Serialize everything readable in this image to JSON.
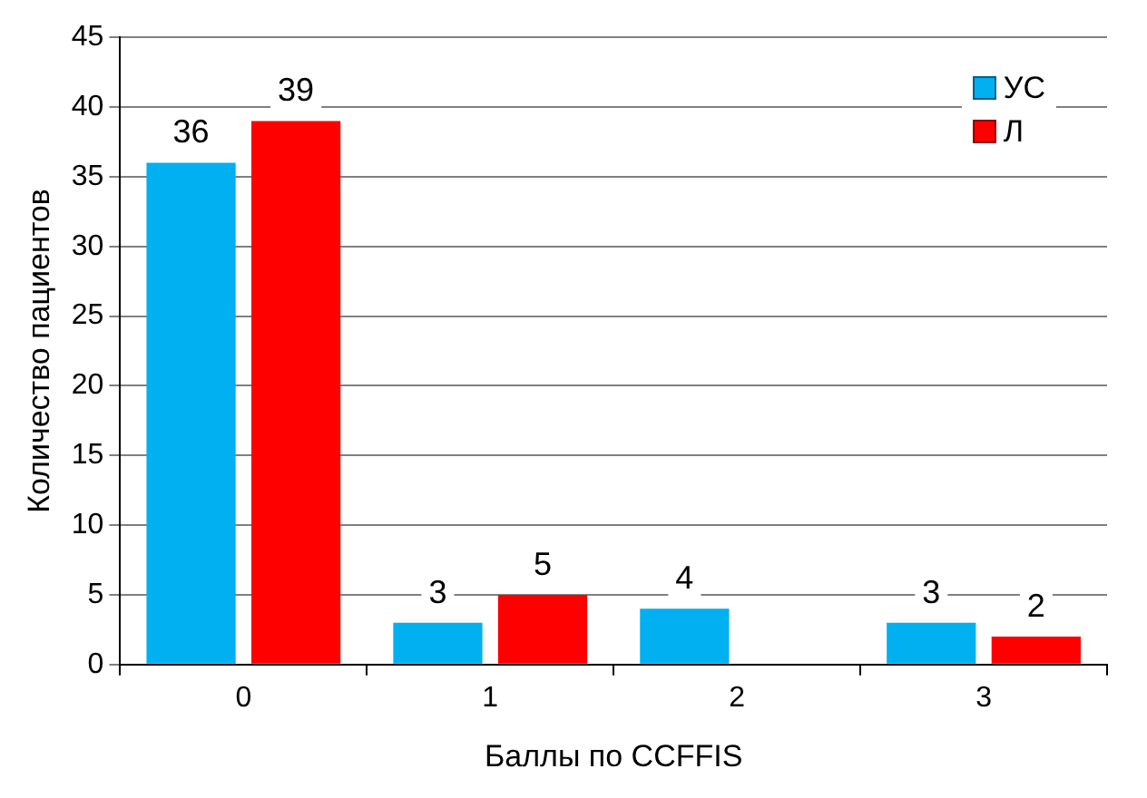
{
  "chart_data": {
    "type": "bar",
    "xlabel": "Баллы по CCFFIS",
    "ylabel": "Количество пациентов",
    "categories": [
      "0",
      "1",
      "2",
      "3"
    ],
    "series": [
      {
        "name": "УС",
        "color": "#00b0f0",
        "values": [
          36,
          3,
          4,
          3
        ]
      },
      {
        "name": "Л",
        "color": "#ff0000",
        "values": [
          39,
          5,
          null,
          2
        ]
      }
    ],
    "ylim": [
      0,
      45
    ],
    "yticks": [
      0,
      5,
      10,
      15,
      20,
      25,
      30,
      35,
      40,
      45
    ],
    "grid": "y",
    "legend": "top right",
    "data_labels": true
  }
}
